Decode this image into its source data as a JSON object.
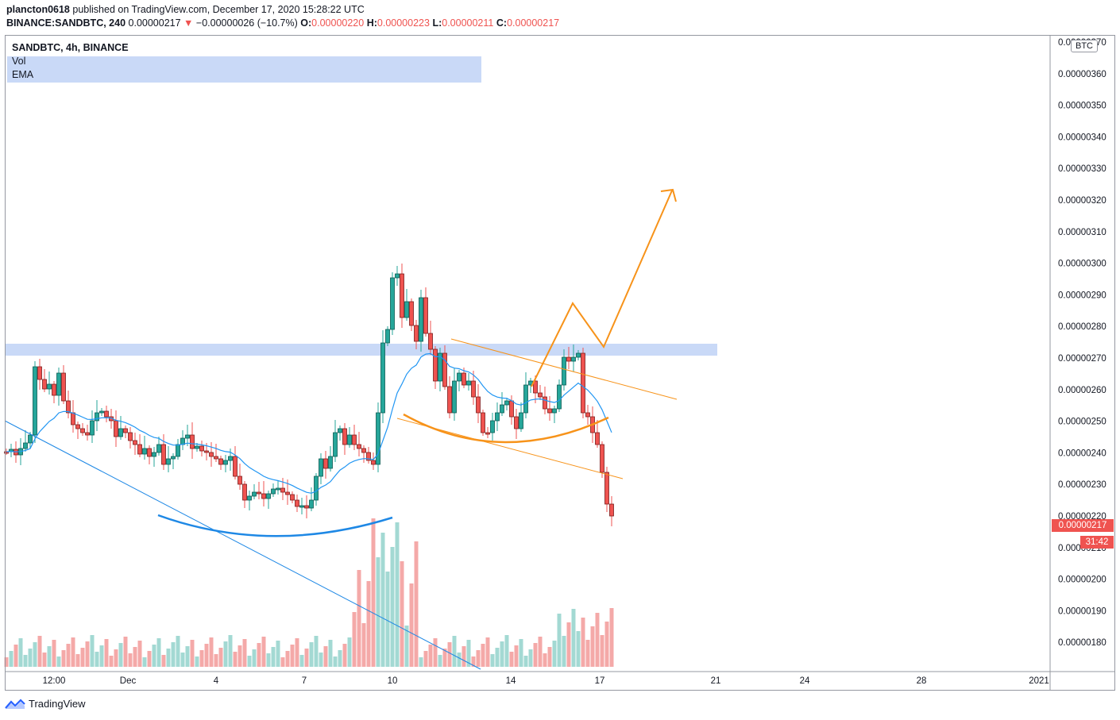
{
  "header": {
    "publisher": "plancton0618",
    "published_text": "published on TradingView.com, December 17, 2020 15:28:22 UTC",
    "symbol": "BINANCE:SANDBTC, 240",
    "last": "0.00000217",
    "change_arrow": "▼",
    "change": "−0.00000026 (−10.7%)",
    "open_label": "O:",
    "open": "0.00000220",
    "high_label": "H:",
    "high": "0.00000223",
    "low_label": "L:",
    "low": "0.00000211",
    "close_label": "C:",
    "close": "0.00000217"
  },
  "legend": {
    "symbol_title": "SANDBTC, 4h, BINANCE",
    "vol_label": "Vol",
    "ema_label": "EMA"
  },
  "price_axis": {
    "currency_badge": "BTC",
    "current_price_tag": "0.00000217",
    "countdown_tag": "31:42",
    "tick_labels": [
      "0.00000370",
      "0.00000360",
      "0.00000350",
      "0.00000340",
      "0.00000330",
      "0.00000320",
      "0.00000310",
      "0.00000300",
      "0.00000290",
      "0.00000280",
      "0.00000270",
      "0.00000260",
      "0.00000250",
      "0.00000240",
      "0.00000230",
      "0.00000220",
      "0.00000210",
      "0.00000200",
      "0.00000190",
      "0.00000180"
    ]
  },
  "time_axis": {
    "tick_labels": [
      "12:00",
      "Dec",
      "4",
      "7",
      "10",
      "14",
      "17",
      "21",
      "24",
      "28",
      "2021"
    ]
  },
  "footer": {
    "brand": "TradingView"
  },
  "colors": {
    "up": "#26a69a",
    "down": "#ef5350",
    "vol_up": "#a3d9d3",
    "vol_down": "#f4a9a8",
    "ema": "#2196f3",
    "resistance_zone": "#c9d9f7",
    "drawing_orange": "#f7931a",
    "drawing_blue": "#1e88e5"
  },
  "chart_data": {
    "type": "candlestick",
    "title": "SANDBTC, 4h, BINANCE",
    "timeframe": "240",
    "y_range": [
      1.7e-06,
      3.7e-06
    ],
    "x_range_dates": [
      "2020-11-30",
      "2021-01-01"
    ],
    "y_scale": "linear",
    "grid": false,
    "series": [
      {
        "name": "Vol",
        "note": "volume histogram, up/down colored"
      },
      {
        "name": "EMA",
        "values_approx": [
          2.45e-06,
          2.5e-06,
          2.51e-06,
          2.5e-06,
          2.48e-06,
          2.46e-06,
          2.44e-06,
          2.43e-06,
          2.41e-06,
          2.37e-06,
          2.33e-06,
          2.3e-06,
          2.29e-06,
          2.3e-06,
          2.38e-06,
          2.45e-06,
          2.62e-06,
          2.65e-06,
          2.62e-06,
          2.58e-06,
          2.55e-06,
          2.53e-06,
          2.56e-06,
          2.58e-06,
          2.56e-06,
          2.5e-06,
          2.45e-06
        ]
      }
    ],
    "candles_approx": {
      "dates": [
        "2020-11-30 12:00",
        "2020-12-01",
        "2020-12-02",
        "2020-12-03",
        "2020-12-04",
        "2020-12-05",
        "2020-12-06",
        "2020-12-07",
        "2020-12-08",
        "2020-12-09",
        "2020-12-10",
        "2020-12-11",
        "2020-12-12",
        "2020-12-13",
        "2020-12-14",
        "2020-12-15",
        "2020-12-16",
        "2020-12-17"
      ],
      "close": [
        2.65e-06,
        2.5e-06,
        2.48e-06,
        2.42e-06,
        2.4e-06,
        2.26e-06,
        2.28e-06,
        2.23e-06,
        2.45e-06,
        2.5e-06,
        2.98e-06,
        2.72e-06,
        2.62e-06,
        2.47e-06,
        2.57e-06,
        2.55e-06,
        2.68e-06,
        2.17e-06
      ]
    },
    "annotations": [
      {
        "type": "rectangle",
        "label": "resistance zone",
        "price_range": [
          2.7e-06,
          2.74e-06
        ]
      },
      {
        "type": "trend_line",
        "label": "descending trendline (blue)"
      },
      {
        "type": "arc",
        "label": "rounded bottom (blue)"
      },
      {
        "type": "trend_lines",
        "label": "descending channel (orange)"
      },
      {
        "type": "arc",
        "label": "rounded bottom (orange)"
      },
      {
        "type": "projection_path",
        "label": "projected move (orange)",
        "target_price": 3.23e-06
      }
    ]
  }
}
